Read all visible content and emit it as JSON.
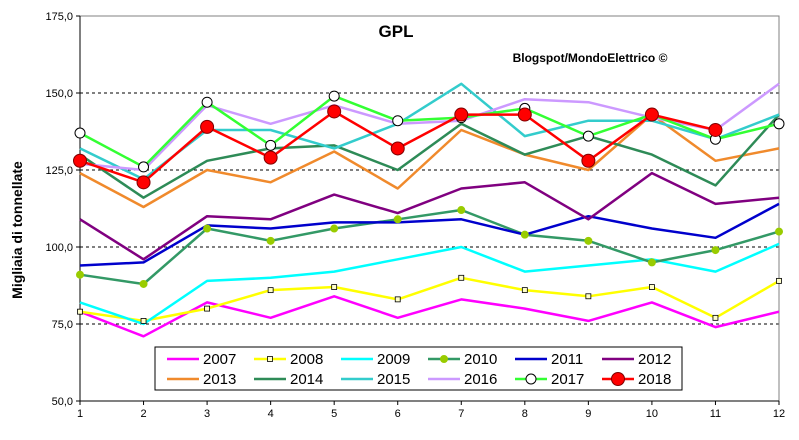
{
  "chart_data": {
    "type": "line",
    "title": "GPL",
    "subtitle": "Blogspot/MondoElettrico ©",
    "ylabel": "Migliaia di tonnellate",
    "xlabel": "",
    "x": [
      1,
      2,
      3,
      4,
      5,
      6,
      7,
      8,
      9,
      10,
      11,
      12
    ],
    "x_tick_labels": [
      "1",
      "2",
      "3",
      "4",
      "5",
      "6",
      "7",
      "8",
      "9",
      "10",
      "11",
      "12"
    ],
    "ylim": [
      50,
      175
    ],
    "y_ticks": [
      50,
      75,
      100,
      125,
      150,
      175
    ],
    "y_tick_labels": [
      "50,0",
      "75,0",
      "100,0",
      "125,0",
      "150,0",
      "175,0"
    ],
    "grid": "horizontal dashed",
    "legend_position": "bottom-center",
    "series": [
      {
        "name": "2007",
        "color": "#ff00ff",
        "marker": "none",
        "values": [
          79,
          71,
          82,
          77,
          84,
          77,
          83,
          80,
          76,
          82,
          74,
          79
        ]
      },
      {
        "name": "2008",
        "color": "#ffff00",
        "marker": "small-square",
        "values": [
          79,
          76,
          80,
          86,
          87,
          83,
          90,
          86,
          84,
          87,
          77,
          89
        ]
      },
      {
        "name": "2009",
        "color": "#00ffff",
        "marker": "none",
        "values": [
          82,
          75,
          89,
          90,
          92,
          96,
          100,
          92,
          94,
          96,
          92,
          101
        ]
      },
      {
        "name": "2010",
        "color": "#339966",
        "marker": "diamond",
        "values": [
          91,
          88,
          106,
          102,
          106,
          109,
          112,
          104,
          102,
          95,
          99,
          105
        ]
      },
      {
        "name": "2011",
        "color": "#0000cc",
        "marker": "none",
        "values": [
          94,
          95,
          107,
          106,
          108,
          108,
          109,
          104,
          110,
          106,
          103,
          114
        ]
      },
      {
        "name": "2012",
        "color": "#800080",
        "marker": "none",
        "values": [
          109,
          96,
          110,
          109,
          117,
          111,
          119,
          121,
          109,
          124,
          114,
          116
        ]
      },
      {
        "name": "2013",
        "color": "#f08a2c",
        "marker": "none",
        "values": [
          124,
          113,
          125,
          121,
          131,
          119,
          138,
          130,
          125,
          143,
          128,
          132
        ]
      },
      {
        "name": "2014",
        "color": "#2e8b57",
        "marker": "none",
        "values": [
          130,
          116,
          128,
          132,
          133,
          125,
          140,
          130,
          136,
          130,
          120,
          143
        ]
      },
      {
        "name": "2015",
        "color": "#33cccc",
        "marker": "none",
        "values": [
          132,
          122,
          138,
          138,
          132,
          140,
          153,
          136,
          141,
          141,
          135,
          143
        ]
      },
      {
        "name": "2016",
        "color": "#cc99ff",
        "marker": "none",
        "values": [
          127,
          125,
          146,
          140,
          146,
          140,
          141,
          148,
          147,
          142,
          138,
          153
        ]
      },
      {
        "name": "2017",
        "color": "#33ff33",
        "marker": "open-circle",
        "values": [
          137,
          126,
          147,
          133,
          149,
          141,
          142,
          145,
          136,
          143,
          135,
          140
        ]
      },
      {
        "name": "2018",
        "color": "#ff0000",
        "marker": "red-circle",
        "values": [
          128,
          121,
          139,
          129,
          144,
          132,
          143,
          143,
          128,
          143,
          138,
          null
        ]
      }
    ]
  }
}
